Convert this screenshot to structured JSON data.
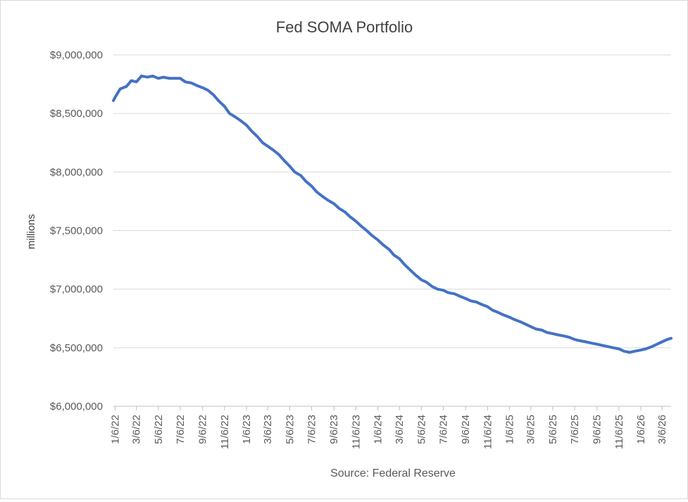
{
  "chart_data": {
    "type": "line",
    "title": "Fed SOMA Portfolio",
    "ylabel": "millions",
    "xlabel": "Source: Federal Reserve",
    "ylim": [
      6000000,
      9000000
    ],
    "y_ticks": [
      6000000,
      6500000,
      7000000,
      7500000,
      8000000,
      8500000,
      9000000
    ],
    "y_tick_labels": [
      "$6,000,000",
      "$6,500,000",
      "$7,000,000",
      "$7,500,000",
      "$8,000,000",
      "$8,500,000",
      "$9,000,000"
    ],
    "x_tick_labels": [
      "1/6/22",
      "3/6/22",
      "5/6/22",
      "7/6/22",
      "9/6/22",
      "11/6/22",
      "1/6/23",
      "3/6/23",
      "5/6/23",
      "7/6/23",
      "9/6/23",
      "11/6/23",
      "1/6/24",
      "3/6/24",
      "5/6/24",
      "7/6/24",
      "9/6/24",
      "11/6/24",
      "1/6/25",
      "3/6/25",
      "5/6/25",
      "7/6/25",
      "9/6/25",
      "11/6/25",
      "1/6/26",
      "3/6/26"
    ],
    "grid": true,
    "line_color": "#4472c4",
    "series": [
      {
        "x": [
          "2022-01-01",
          "2022-01-06",
          "2022-01-20",
          "2022-02-06",
          "2022-02-20",
          "2022-03-06",
          "2022-03-20",
          "2022-04-06",
          "2022-04-20",
          "2022-05-06",
          "2022-05-20",
          "2022-06-06",
          "2022-06-20",
          "2022-07-06",
          "2022-07-20",
          "2022-08-06",
          "2022-08-20",
          "2022-09-06",
          "2022-09-20",
          "2022-10-06",
          "2022-10-20",
          "2022-11-06",
          "2022-11-20",
          "2022-12-06",
          "2022-12-20",
          "2023-01-06",
          "2023-01-20",
          "2023-02-06",
          "2023-02-20",
          "2023-03-06",
          "2023-03-20",
          "2023-04-06",
          "2023-04-20",
          "2023-05-06",
          "2023-05-20",
          "2023-06-06",
          "2023-06-20",
          "2023-07-06",
          "2023-07-20",
          "2023-08-06",
          "2023-08-20",
          "2023-09-06",
          "2023-09-20",
          "2023-10-06",
          "2023-10-20",
          "2023-11-06",
          "2023-11-20",
          "2023-12-06",
          "2023-12-20",
          "2024-01-06",
          "2024-01-20",
          "2024-02-06",
          "2024-02-20",
          "2024-03-06",
          "2024-03-20",
          "2024-04-06",
          "2024-04-20",
          "2024-05-06",
          "2024-05-20",
          "2024-06-06",
          "2024-06-20",
          "2024-07-06",
          "2024-07-20",
          "2024-08-06",
          "2024-08-20",
          "2024-09-06",
          "2024-09-20",
          "2024-10-06",
          "2024-10-20",
          "2024-11-06",
          "2024-11-20",
          "2024-12-06",
          "2024-12-20",
          "2025-01-06",
          "2025-01-20",
          "2025-02-06",
          "2025-02-20",
          "2025-03-06",
          "2025-03-20",
          "2025-04-06",
          "2025-04-20",
          "2025-05-06",
          "2025-05-20",
          "2025-06-06",
          "2025-06-20",
          "2025-07-06",
          "2025-07-20",
          "2025-08-06",
          "2025-08-20",
          "2025-09-06",
          "2025-09-20",
          "2025-10-06",
          "2025-10-20",
          "2025-11-06",
          "2025-11-20",
          "2025-12-06",
          "2025-12-20",
          "2026-01-06",
          "2026-01-20",
          "2026-02-06",
          "2026-02-20",
          "2026-03-06",
          "2026-03-20",
          "2026-03-31"
        ],
        "y": [
          8610000,
          8640000,
          8710000,
          8730000,
          8780000,
          8770000,
          8820000,
          8810000,
          8820000,
          8800000,
          8810000,
          8800000,
          8800000,
          8800000,
          8770000,
          8760000,
          8740000,
          8720000,
          8700000,
          8660000,
          8610000,
          8560000,
          8500000,
          8470000,
          8440000,
          8400000,
          8350000,
          8300000,
          8250000,
          8220000,
          8190000,
          8150000,
          8100000,
          8050000,
          8000000,
          7970000,
          7920000,
          7880000,
          7830000,
          7790000,
          7760000,
          7730000,
          7690000,
          7660000,
          7620000,
          7580000,
          7540000,
          7500000,
          7460000,
          7420000,
          7380000,
          7340000,
          7290000,
          7260000,
          7210000,
          7160000,
          7120000,
          7080000,
          7060000,
          7020000,
          7000000,
          6990000,
          6970000,
          6960000,
          6940000,
          6920000,
          6900000,
          6890000,
          6870000,
          6850000,
          6820000,
          6800000,
          6780000,
          6760000,
          6740000,
          6720000,
          6700000,
          6680000,
          6660000,
          6650000,
          6630000,
          6620000,
          6610000,
          6600000,
          6590000,
          6570000,
          6560000,
          6550000,
          6540000,
          6530000,
          6520000,
          6510000,
          6500000,
          6490000,
          6470000,
          6460000,
          6470000,
          6480000,
          6490000,
          6510000,
          6530000,
          6550000,
          6570000,
          6580000
        ]
      }
    ]
  }
}
